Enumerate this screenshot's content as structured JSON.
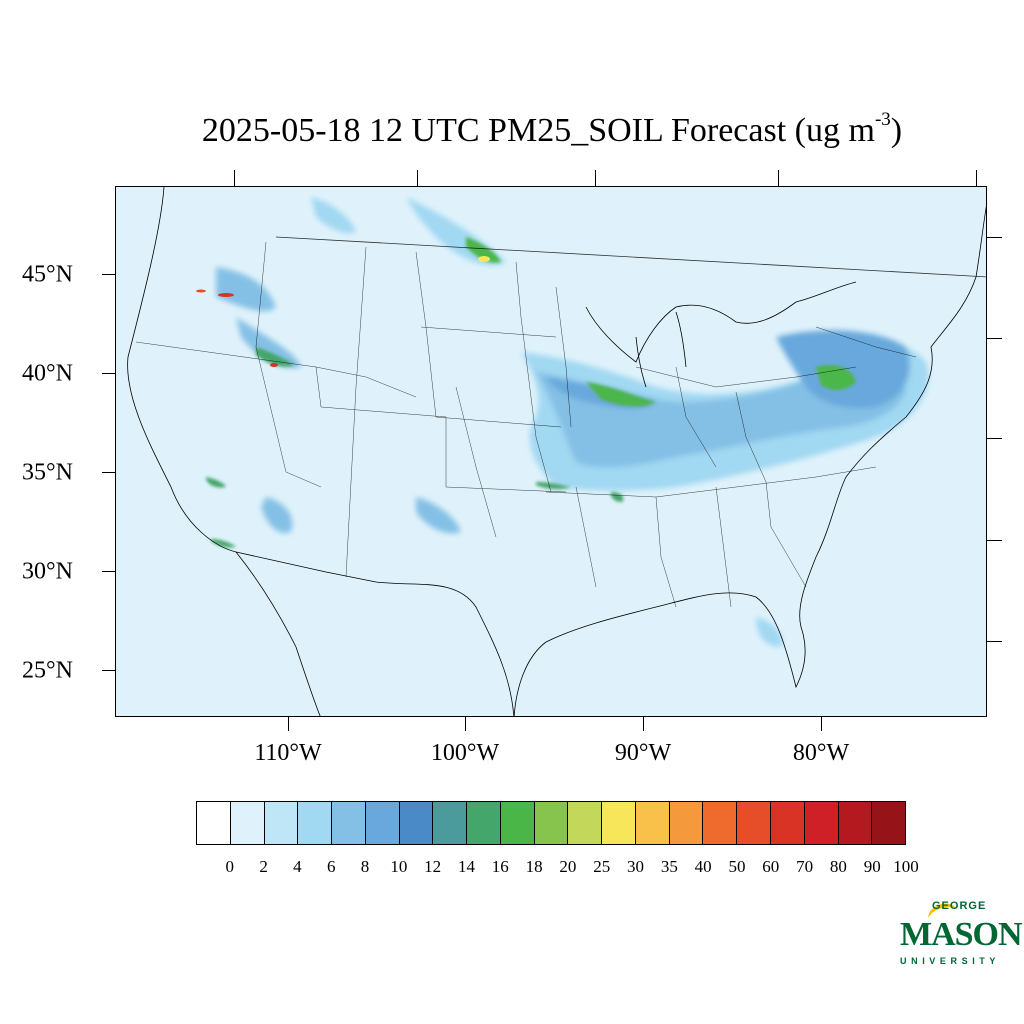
{
  "title": {
    "text": "2025-05-18 12 UTC PM25_SOIL Forecast (ug m",
    "superscript": "-3",
    "closing": ")"
  },
  "map": {
    "lat_labels": [
      "45°N",
      "40°N",
      "35°N",
      "30°N",
      "25°N"
    ],
    "lon_labels": [
      "110°W",
      "100°W",
      "90°W",
      "80°W"
    ],
    "background_color": "#dff2fb",
    "line_color": "#000000"
  },
  "colorbar": {
    "labels": [
      "0",
      "2",
      "4",
      "6",
      "8",
      "10",
      "12",
      "14",
      "16",
      "18",
      "20",
      "25",
      "30",
      "35",
      "40",
      "50",
      "60",
      "70",
      "80",
      "90",
      "100"
    ],
    "colors": [
      "#ffffff",
      "#dff2fb",
      "#bfe6f7",
      "#a1d8f2",
      "#84c0e5",
      "#68a8dc",
      "#4a8ac6",
      "#4b9a9c",
      "#44a66b",
      "#4bb648",
      "#86c44e",
      "#c3d75a",
      "#f8e65a",
      "#f9c04a",
      "#f59a3c",
      "#ef6b2d",
      "#e54e28",
      "#d93325",
      "#cf2027",
      "#b3191e",
      "#961418"
    ]
  },
  "logo": {
    "line1": "GEORGE",
    "line2": "MASON",
    "line3": "UNIVERSITY",
    "color": "#006633",
    "accent_color": "#f2c200"
  }
}
